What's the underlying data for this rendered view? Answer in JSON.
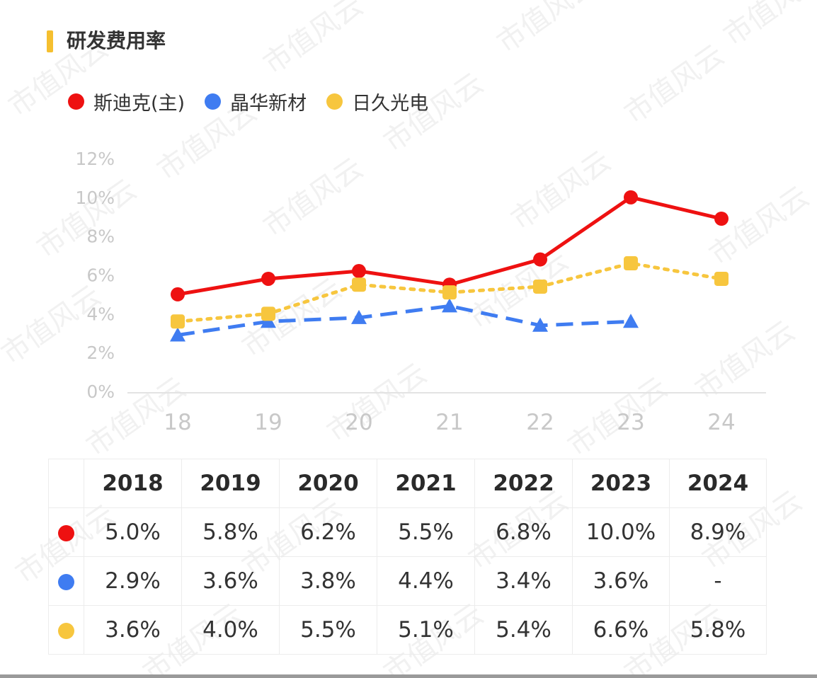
{
  "title": "研发费用率",
  "colors": {
    "accent": "#f5bf2f",
    "red": "#ee1111",
    "blue": "#3f7cf1",
    "yellow": "#f7c63e"
  },
  "watermark": "市值风云",
  "legend": [
    {
      "label": "斯迪克(主)",
      "color": "#ee1111"
    },
    {
      "label": "晶华新材",
      "color": "#3f7cf1"
    },
    {
      "label": "日久光电",
      "color": "#f7c63e"
    }
  ],
  "chart_data": {
    "type": "line",
    "categories": [
      "18",
      "19",
      "20",
      "21",
      "22",
      "23",
      "24"
    ],
    "yticks": [
      "0%",
      "2%",
      "4%",
      "6%",
      "8%",
      "10%",
      "12%"
    ],
    "ylim": [
      0,
      12
    ],
    "grid": false,
    "legend_position": "top-left",
    "series": [
      {
        "name": "斯迪克(主)",
        "color": "#ee1111",
        "marker": "circle",
        "dash": "solid",
        "values": [
          5.0,
          5.8,
          6.2,
          5.5,
          6.8,
          10.0,
          8.9
        ]
      },
      {
        "name": "晶华新材",
        "color": "#3f7cf1",
        "marker": "triangle",
        "dash": "dashed",
        "values": [
          2.9,
          3.6,
          3.8,
          4.4,
          3.4,
          3.6,
          null
        ]
      },
      {
        "name": "日久光电",
        "color": "#f7c63e",
        "marker": "square",
        "dash": "dotted",
        "values": [
          3.6,
          4.0,
          5.5,
          5.1,
          5.4,
          6.6,
          5.8
        ]
      }
    ]
  },
  "table": {
    "years": [
      "2018",
      "2019",
      "2020",
      "2021",
      "2022",
      "2023",
      "2024"
    ],
    "rows": [
      {
        "color": "#ee1111",
        "values": [
          "5.0%",
          "5.8%",
          "6.2%",
          "5.5%",
          "6.8%",
          "10.0%",
          "8.9%"
        ]
      },
      {
        "color": "#3f7cf1",
        "values": [
          "2.9%",
          "3.6%",
          "3.8%",
          "4.4%",
          "3.4%",
          "3.6%",
          "-"
        ]
      },
      {
        "color": "#f7c63e",
        "values": [
          "3.6%",
          "4.0%",
          "5.5%",
          "5.1%",
          "5.4%",
          "6.6%",
          "5.8%"
        ]
      }
    ]
  }
}
